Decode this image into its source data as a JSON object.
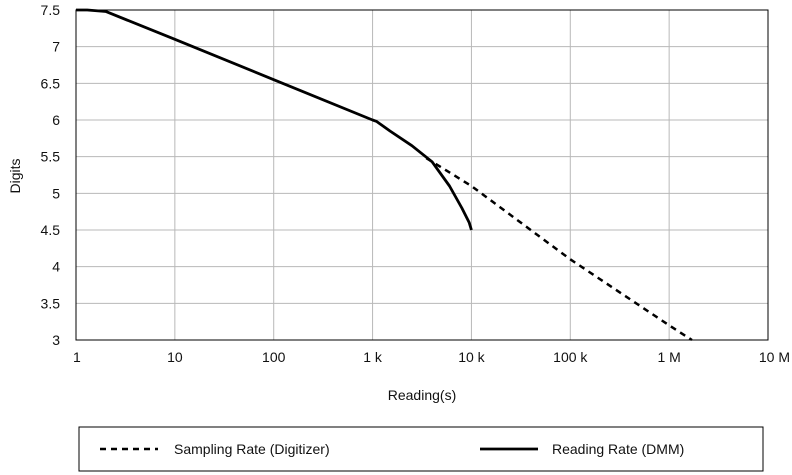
{
  "chart_data": {
    "type": "line",
    "title": "",
    "xlabel": "Reading(s)",
    "ylabel": "Digits",
    "x_scale": "log10",
    "xlim": [
      1,
      10000000
    ],
    "ylim": [
      3,
      7.5
    ],
    "grid": true,
    "legend_placement": "bottom",
    "x_ticks": [
      {
        "value": 1,
        "label": "1"
      },
      {
        "value": 10,
        "label": "10"
      },
      {
        "value": 100,
        "label": "100"
      },
      {
        "value": 1000,
        "label": "1 k"
      },
      {
        "value": 10000,
        "label": "10 k"
      },
      {
        "value": 100000,
        "label": "100 k"
      },
      {
        "value": 1000000,
        "label": "1 M"
      },
      {
        "value": 10000000,
        "label": "10 M"
      }
    ],
    "y_ticks": [
      {
        "value": 3,
        "label": "3"
      },
      {
        "value": 3.5,
        "label": "3.5"
      },
      {
        "value": 4,
        "label": "4"
      },
      {
        "value": 4.5,
        "label": "4.5"
      },
      {
        "value": 5,
        "label": "5"
      },
      {
        "value": 5.5,
        "label": "5.5"
      },
      {
        "value": 6,
        "label": "6"
      },
      {
        "value": 6.5,
        "label": "6.5"
      },
      {
        "value": 7,
        "label": "7"
      },
      {
        "value": 7.5,
        "label": "7.5"
      }
    ],
    "series": [
      {
        "name": "Sampling Rate (Digitizer)",
        "style": "dashed",
        "color": "#000000",
        "x": [
          3500,
          10000,
          100000,
          1000000,
          1700000
        ],
        "y": [
          5.48,
          5.1,
          4.1,
          3.2,
          3.0
        ]
      },
      {
        "name": "Reading Rate (DMM)",
        "style": "solid",
        "color": "#000000",
        "x": [
          1,
          1.3,
          2,
          10,
          100,
          1000,
          1100,
          1500,
          2500,
          4000,
          6000,
          8000,
          9500,
          10000
        ],
        "y": [
          7.5,
          7.5,
          7.48,
          7.1,
          6.55,
          6.0,
          5.98,
          5.85,
          5.65,
          5.43,
          5.1,
          4.8,
          4.6,
          4.5
        ]
      }
    ]
  }
}
